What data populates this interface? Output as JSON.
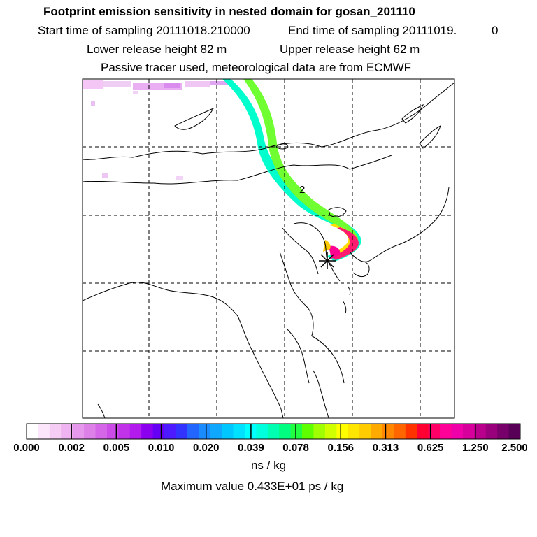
{
  "header": {
    "title": "Footprint emission sensitivity in nested domain for gosan_201110",
    "start_sampling": "Start time of sampling 20111018.210000",
    "end_sampling": "End time of sampling 20111019.",
    "end_sampling_value": "0",
    "lower_release": "Lower release height   82 m",
    "upper_release": "Upper release height   62 m",
    "tracer_note": "Passive tracer used, meteorological data are from ECMWF"
  },
  "map": {
    "contour_label": "2",
    "receptor_marker": "asterisk-icon",
    "colors": {
      "plume_low": "#00ffcc",
      "plume_mid": "#ffff00",
      "plume_high": "#ff0080",
      "faint": "#e080ff"
    }
  },
  "colorbar": {
    "tick_labels": [
      "0.000",
      "0.002",
      "0.005",
      "0.010",
      "0.020",
      "0.039",
      "0.078",
      "0.156",
      "0.313",
      "0.625",
      "1.250",
      "2.500"
    ],
    "colors": [
      "#ffffff",
      "#fbe6fb",
      "#f4ccf4",
      "#eeb3f0",
      "#e699ec",
      "#dd80e8",
      "#d566e8",
      "#cc4ce8",
      "#c033e8",
      "#b31aee",
      "#8c00f0",
      "#6600f5",
      "#4d1aff",
      "#3333ff",
      "#2266ff",
      "#1a8cff",
      "#10a8ff",
      "#00c8ff",
      "#00e0ff",
      "#00ffff",
      "#00ffdd",
      "#00ffb0",
      "#00ff80",
      "#20ff40",
      "#60ff00",
      "#a0ff00",
      "#d0ff00",
      "#ffff00",
      "#ffe600",
      "#ffcc00",
      "#ffaa00",
      "#ff8800",
      "#ff6600",
      "#ff3300",
      "#ff0033",
      "#ff0066",
      "#ff0099",
      "#f000a8",
      "#d8009c",
      "#b8008c",
      "#98007c",
      "#78006a",
      "#580058"
    ],
    "unit": "ns / kg"
  },
  "footer": {
    "max_value": "Maximum value  0.433E+01 ps / kg"
  }
}
